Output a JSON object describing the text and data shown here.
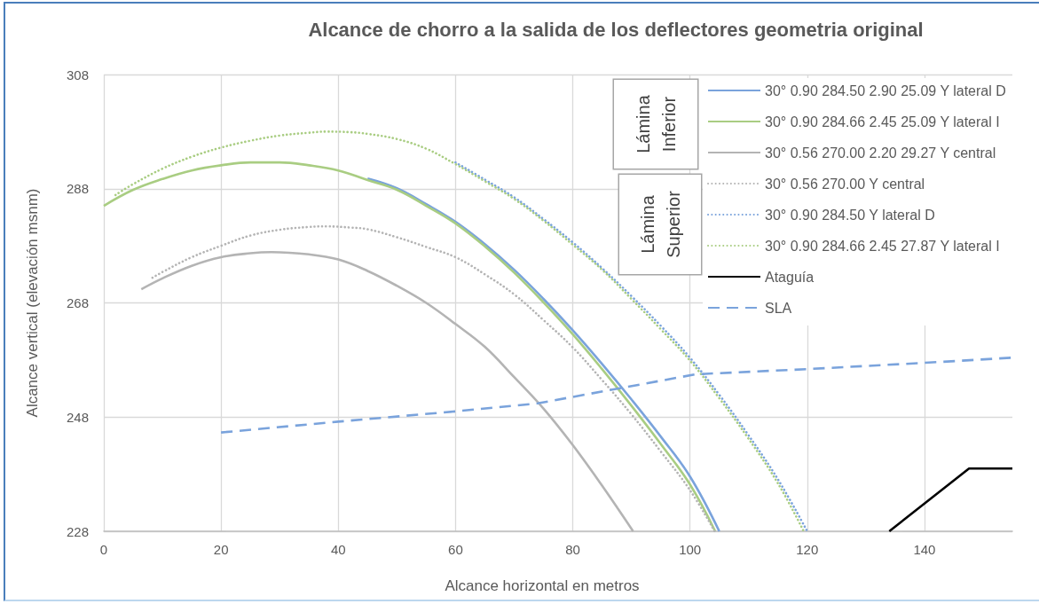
{
  "chart_data": {
    "type": "line",
    "title": "Alcance de chorro a la salida de los deflectores geometria original",
    "xlabel": "Alcance horizontal en metros",
    "ylabel": "Alcance vertical (elevación msnm)",
    "xlim": [
      0,
      155
    ],
    "xticks": [
      0,
      20,
      40,
      60,
      80,
      100,
      120,
      140
    ],
    "ylim": [
      228,
      308
    ],
    "yticks": [
      228,
      248,
      268,
      288,
      308
    ],
    "grid": true,
    "legend": "top right",
    "marker": "none",
    "annotations": [
      "Lámina Inferior",
      "Lámina Superior"
    ],
    "series": [
      {
        "name": "30° 0.90 284.50 2.90 25.09 Y lateral D",
        "color": "#7aa3dc",
        "line_style": "solid",
        "x": [
          45,
          50,
          55,
          60,
          65,
          70,
          75,
          80,
          85,
          90,
          95,
          100,
          105
        ],
        "values": [
          289.8,
          288.1,
          285.3,
          282.2,
          278.3,
          273.8,
          268.7,
          263.2,
          257.3,
          251.1,
          244.6,
          237.6,
          228
        ]
      },
      {
        "name": "30° 0.90 284.66 2.45 25.09 Y lateral I",
        "color": "#a9cd82",
        "line_style": "solid",
        "x": [
          0,
          5,
          10,
          15,
          20,
          25,
          30,
          35,
          40,
          45,
          50,
          55,
          60,
          65,
          70,
          75,
          80,
          85,
          90,
          95,
          100,
          104.3
        ],
        "values": [
          285.0,
          287.8,
          289.7,
          291.2,
          292.1,
          292.6,
          292.6,
          292.1,
          291.2,
          289.5,
          287.8,
          285.0,
          281.9,
          277.9,
          273.3,
          268.1,
          262.5,
          256.4,
          250.0,
          243.3,
          236.2,
          228
        ]
      },
      {
        "name": "30° 0.56 270.00 2.20 29.27 Y central",
        "color": "#b4b4b4",
        "line_style": "solid",
        "x": [
          6.4,
          10,
          15,
          20,
          25,
          28.6,
          35,
          40,
          45,
          50,
          55,
          60,
          65,
          70,
          75,
          80,
          85,
          90.3
        ],
        "values": [
          270.4,
          272.3,
          274.5,
          276.0,
          276.7,
          276.9,
          276.5,
          275.6,
          273.6,
          271.0,
          268.0,
          264.3,
          260.3,
          255.0,
          249.5,
          243.1,
          236.0,
          228
        ]
      },
      {
        "name": "30° 0.56 270.00 Y central",
        "color": "#b4b4b4",
        "line_style": "dotted",
        "x": [
          8.3,
          10,
          15,
          20,
          25,
          30,
          35,
          38,
          42,
          45,
          50,
          55,
          60,
          65,
          70,
          75,
          80,
          85,
          90,
          95,
          100,
          104.2
        ],
        "values": [
          272.4,
          273.4,
          276.0,
          278.0,
          279.8,
          280.8,
          281.3,
          281.4,
          281.2,
          280.9,
          279.5,
          277.8,
          276.0,
          273.0,
          269.5,
          265.0,
          260.2,
          254.5,
          248.5,
          242.0,
          235.2,
          228
        ]
      },
      {
        "name": "30° 0.90 284.50 Y lateral D",
        "color": "#7aa3dc",
        "line_style": "dotted",
        "x": [
          60,
          65,
          70,
          75,
          80,
          85,
          90,
          95,
          100,
          105,
          110,
          115,
          120
        ],
        "values": [
          292.6,
          289.6,
          286.5,
          282.7,
          278.6,
          274.1,
          269.2,
          264.0,
          258.4,
          251.9,
          244.8,
          237.1,
          228
        ]
      },
      {
        "name": "30° 0.90 284.66 2.45 27.87 Y lateral I",
        "color": "#a9cd82",
        "line_style": "dotted",
        "x": [
          2,
          5,
          10,
          15,
          20,
          25,
          30,
          35,
          38,
          42,
          45,
          50,
          55,
          60,
          65,
          70,
          75,
          80,
          85,
          90,
          95,
          100,
          105,
          110,
          115,
          119.4
        ],
        "values": [
          286.9,
          288.8,
          291.5,
          293.6,
          295.2,
          296.4,
          297.3,
          297.8,
          298.0,
          297.9,
          297.6,
          296.7,
          295.0,
          292.3,
          289.3,
          286.2,
          282.4,
          278.2,
          273.8,
          268.7,
          263.4,
          257.9,
          251.3,
          244.2,
          236.4,
          228
        ]
      },
      {
        "name": "Ataguía",
        "color": "#000000",
        "line_style": "solid",
        "x": [
          134,
          147.6,
          155
        ],
        "values": [
          228,
          239,
          239
        ]
      },
      {
        "name": "SLA",
        "color": "#7aa3dc",
        "line_style": "dashed",
        "x": [
          20,
          40,
          60,
          74,
          101,
          120,
          140,
          155
        ],
        "values": [
          245.3,
          247.2,
          249.0,
          250.4,
          255.5,
          256.4,
          257.5,
          258.4
        ]
      }
    ]
  }
}
